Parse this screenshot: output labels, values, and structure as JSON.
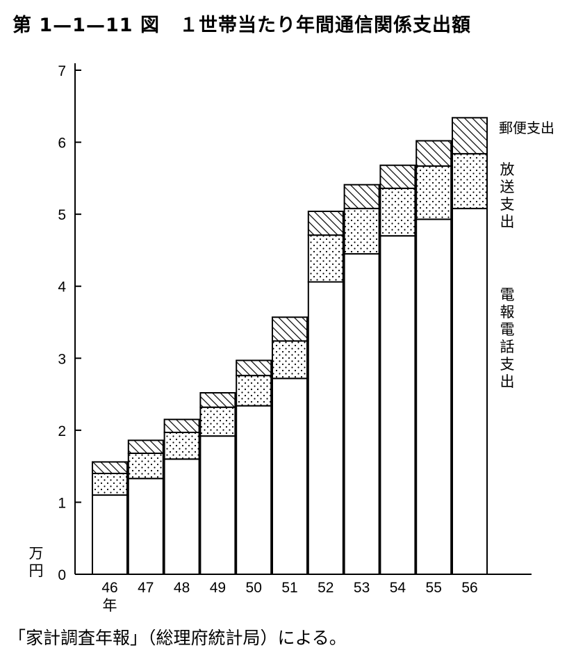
{
  "title": "第 1—1—11 図　１世帯当たり年間通信関係支出額",
  "source": "「家計調査年報」（総理府統計局）による。",
  "colors": {
    "ink": "#000000",
    "paper": "#ffffff"
  },
  "chart_data": {
    "type": "bar",
    "stacked": true,
    "categories": [
      "46",
      "47",
      "48",
      "49",
      "50",
      "51",
      "52",
      "53",
      "54",
      "55",
      "56"
    ],
    "x_unit_label": "年",
    "y_unit_label": "万円",
    "ylim": [
      0,
      7
    ],
    "yticks": [
      0,
      1,
      2,
      3,
      4,
      5,
      6,
      7
    ],
    "grid": false,
    "series": [
      {
        "name": "電報電話支出",
        "pattern": "plain",
        "values": [
          1.1,
          1.33,
          1.6,
          1.92,
          2.34,
          2.72,
          4.06,
          4.45,
          4.7,
          4.93,
          5.08
        ]
      },
      {
        "name": "放送支出",
        "pattern": "dots",
        "values": [
          0.3,
          0.35,
          0.37,
          0.4,
          0.42,
          0.52,
          0.65,
          0.63,
          0.66,
          0.74,
          0.76
        ]
      },
      {
        "name": "郵便支出",
        "pattern": "hatch",
        "values": [
          0.16,
          0.18,
          0.18,
          0.2,
          0.21,
          0.33,
          0.33,
          0.33,
          0.32,
          0.35,
          0.5
        ]
      }
    ]
  }
}
